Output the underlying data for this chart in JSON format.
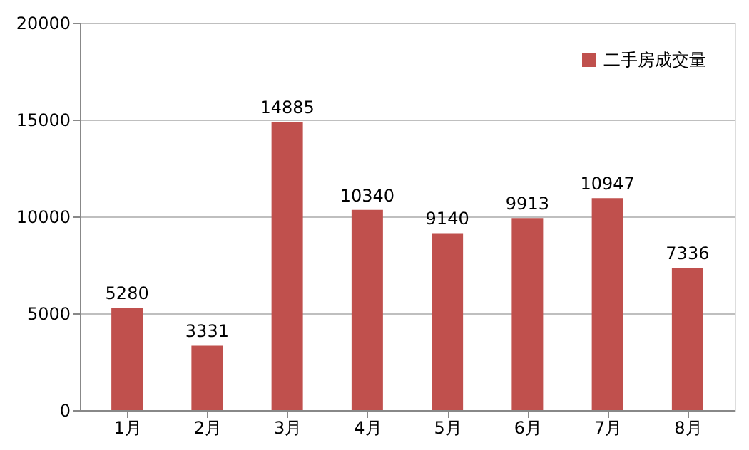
{
  "chart_data": {
    "type": "bar",
    "categories": [
      "1月",
      "2月",
      "3月",
      "4月",
      "5月",
      "6月",
      "7月",
      "8月"
    ],
    "series": [
      {
        "name": "二手房成交量",
        "color": "#c0504d",
        "values": [
          5280,
          3331,
          14885,
          10340,
          9140,
          9913,
          10947,
          7336
        ]
      }
    ],
    "ylim": [
      0,
      20000
    ],
    "yticks": [
      0,
      5000,
      10000,
      15000,
      20000
    ],
    "grid": "y",
    "legend": "top right",
    "data_labels": true
  }
}
